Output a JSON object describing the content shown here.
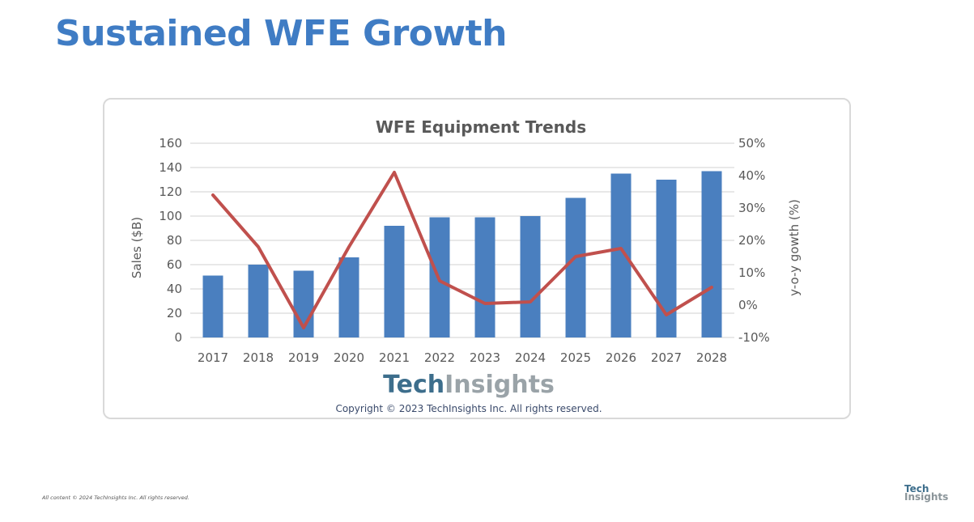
{
  "slide": {
    "title": "Sustained WFE Growth",
    "footer_note": "All content © 2024 TechInsights Inc. All rights reserved.",
    "corner_logo": {
      "line1": "Tech",
      "line2": "Insights"
    }
  },
  "chart_data": {
    "type": "bar+line",
    "title": "WFE Equipment Trends",
    "categories": [
      "2017",
      "2018",
      "2019",
      "2020",
      "2021",
      "2022",
      "2023",
      "2024",
      "2025",
      "2026",
      "2027",
      "2028"
    ],
    "series": [
      {
        "name": "Sales ($B)",
        "type": "bar",
        "axis": "left",
        "color": "#4a7fbf",
        "values": [
          51,
          60,
          55,
          66,
          92,
          99,
          99,
          100,
          115,
          135,
          130,
          137
        ]
      },
      {
        "name": "y-o-y gowth (%)",
        "type": "line",
        "axis": "right",
        "color": "#c0504d",
        "values": [
          34,
          18,
          -7,
          18,
          41,
          7.5,
          0.5,
          1,
          15,
          17.5,
          -3,
          5.5
        ]
      }
    ],
    "ylabel": "Sales ($B)",
    "y2label": "y-o-y gowth (%)",
    "ylim": [
      0,
      160
    ],
    "y2lim": [
      -10,
      50
    ],
    "yticks": [
      "0",
      "20",
      "40",
      "60",
      "80",
      "100",
      "120",
      "140",
      "160"
    ],
    "y2ticks": [
      "-10%",
      "0%",
      "10%",
      "20%",
      "30%",
      "40%",
      "50%"
    ],
    "grid": true,
    "logo": {
      "part1": "Tech",
      "part2": "Insights"
    },
    "copyright": "Copyright © 2023 TechInsights Inc.  All rights reserved."
  }
}
